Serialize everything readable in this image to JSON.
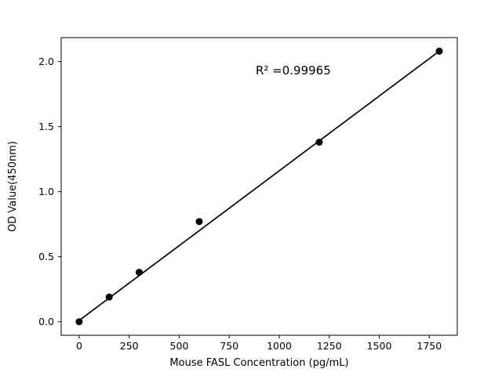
{
  "chart_data": {
    "type": "scatter",
    "title": "",
    "xlabel": "Mouse FASL Concentration (pg/mL)",
    "ylabel": "OD Value(450nm)",
    "annotation": "R² =0.99965",
    "annotation_xy": [
      1070,
      1.9
    ],
    "x": [
      0,
      150,
      300,
      600,
      1200,
      1800
    ],
    "y": [
      0.0,
      0.19,
      0.38,
      0.77,
      1.38,
      2.08
    ],
    "fit_line": {
      "x": [
        0,
        1800
      ],
      "y": [
        0.01,
        2.08
      ]
    },
    "xlim": [
      -90,
      1890
    ],
    "ylim": [
      -0.104,
      2.184
    ],
    "xticks": [
      0,
      250,
      500,
      750,
      1000,
      1250,
      1500,
      1750
    ],
    "xtick_labels": [
      "0",
      "250",
      "500",
      "750",
      "1000",
      "1250",
      "1500",
      "1750"
    ],
    "yticks": [
      0.0,
      0.5,
      1.0,
      1.5,
      2.0
    ],
    "ytick_labels": [
      "0.0",
      "0.5",
      "1.0",
      "1.5",
      "2.0"
    ],
    "grid": false,
    "legend": null,
    "colors": {
      "point": "#000000",
      "line": "#000000",
      "text": "#000000",
      "spine": "#000000",
      "background": "#ffffff"
    }
  }
}
